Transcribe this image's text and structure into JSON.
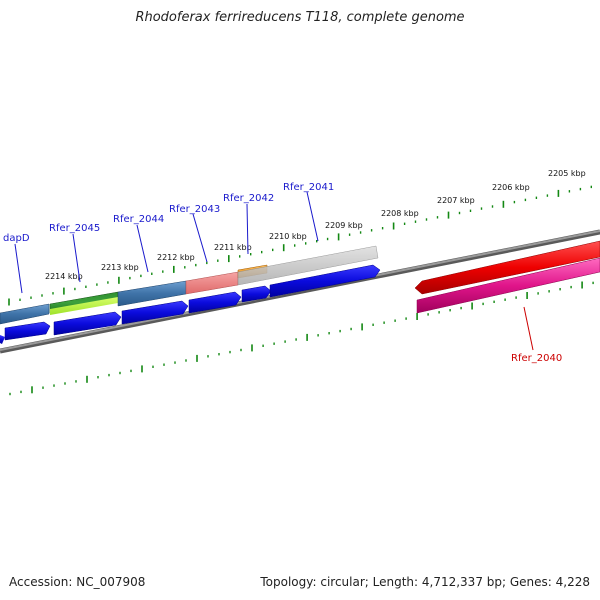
{
  "title": "Rhodoferax ferrireducens T118, complete genome",
  "footer": {
    "accession": "Accession: NC_007908",
    "summary": "Topology: circular; Length: 4,712,337 bp; Genes: 4,228"
  },
  "colors": {
    "tick": "#138813",
    "backbone": "#7a7a7a",
    "label_blue": "#1a1acc",
    "label_red": "#cc0000",
    "cds_blue": "#0b0bdd",
    "gene_red": "#ee0000",
    "gene_pink": "#e0158a"
  },
  "scale_labels": [
    "2214 kbp",
    "2213 kbp",
    "2212 kbp",
    "2211 kbp",
    "2210 kbp",
    "2209 kbp",
    "2208 kbp",
    "2207 kbp",
    "2206 kbp",
    "2205 kbp"
  ],
  "gene_labels": [
    {
      "text": "dapD",
      "color": "blue"
    },
    {
      "text": "Rfer_2045",
      "color": "blue"
    },
    {
      "text": "Rfer_2044",
      "color": "blue"
    },
    {
      "text": "Rfer_2043",
      "color": "blue"
    },
    {
      "text": "Rfer_2042",
      "color": "blue"
    },
    {
      "text": "Rfer_2041",
      "color": "blue"
    },
    {
      "text": "Rfer_2040",
      "color": "red"
    }
  ],
  "feature_bars": [
    {
      "name": "dapD-gene",
      "color": "#4a7fb5",
      "strand": "top"
    },
    {
      "name": "rfer-2045-gene",
      "color": "#2e9b2e",
      "strand": "top"
    },
    {
      "name": "rfer-2045-gene-light",
      "color": "#b6f03a",
      "strand": "top"
    },
    {
      "name": "rfer-2044-gene",
      "color": "#4a7fb5",
      "strand": "top"
    },
    {
      "name": "rfer-2043-gene",
      "color": "#ee8080",
      "strand": "top"
    },
    {
      "name": "rfer-2042-gene",
      "color": "#f29a20",
      "strand": "top"
    },
    {
      "name": "rfer-2041-gene",
      "color": "#c4c4c4",
      "strand": "top"
    }
  ]
}
